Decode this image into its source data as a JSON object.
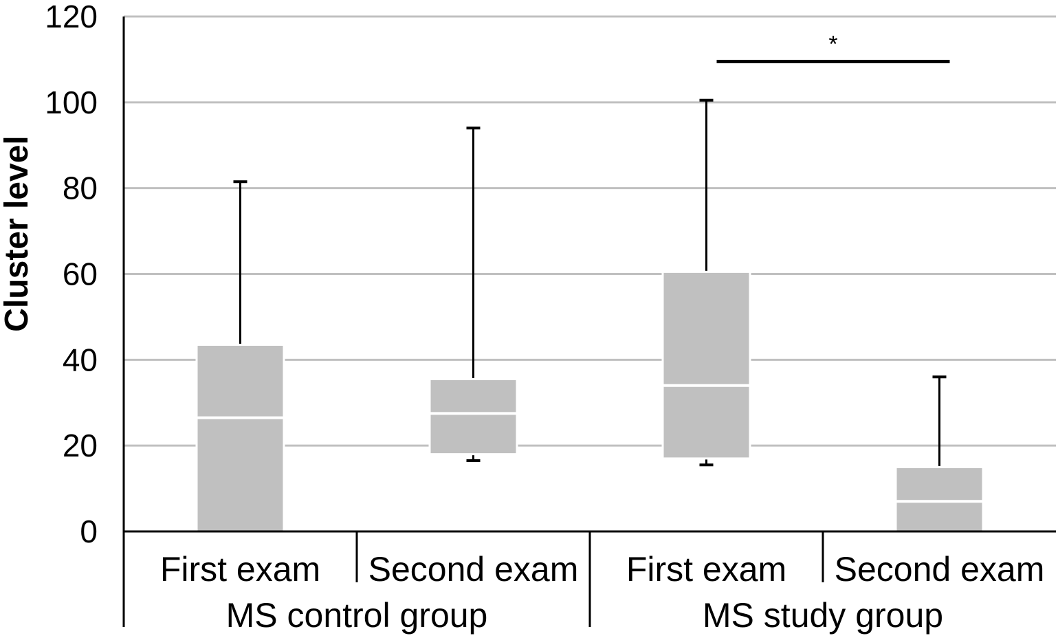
{
  "chart_data": {
    "type": "box",
    "ylabel": "Cluster level",
    "xlabel": "",
    "title": "",
    "ylim": [
      0,
      120
    ],
    "yticks": [
      0,
      20,
      40,
      60,
      80,
      100,
      120
    ],
    "grid": true,
    "categories": [
      "First exam",
      "Second exam",
      "First exam",
      "Second exam"
    ],
    "groups": [
      {
        "label": "MS control group",
        "categories": [
          0,
          1
        ]
      },
      {
        "label": "MS study group",
        "categories": [
          2,
          3
        ]
      }
    ],
    "boxes": [
      {
        "category": "First exam",
        "group": "MS control group",
        "min": 0,
        "q1": 0,
        "median": 26.5,
        "q3": 43.5,
        "max": 81.5
      },
      {
        "category": "Second exam",
        "group": "MS control group",
        "min": 16.5,
        "q1": 18,
        "median": 27.5,
        "q3": 35.5,
        "max": 94
      },
      {
        "category": "First exam",
        "group": "MS study group",
        "min": 15.5,
        "q1": 17,
        "median": 34,
        "q3": 60.5,
        "max": 100.5
      },
      {
        "category": "Second exam",
        "group": "MS study group",
        "min": 0,
        "q1": 0,
        "median": 7,
        "q3": 15,
        "max": 36
      }
    ],
    "significance": {
      "label": "*",
      "between": [
        2,
        3
      ],
      "y": 109.5
    },
    "colors": {
      "box_fill": "#c0c0c0",
      "median_line": "#ffffff",
      "grid": "#c0c0c0",
      "axis": "#000000"
    }
  }
}
